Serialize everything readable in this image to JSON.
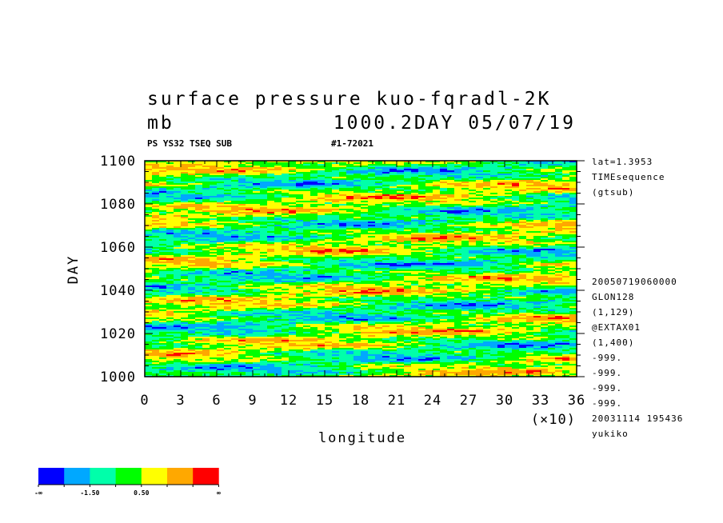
{
  "chart_data": {
    "type": "heatmap",
    "title": "surface pressure kuo-fqradl-2K",
    "units": "mb",
    "title_right": "1000.2DAY 05/07/19",
    "subtitle_left": "PS YS32 TSEQ SUB",
    "subtitle_right": "#1-72021",
    "xlabel": "longitude",
    "ylabel": "DAY",
    "x_multiplier_label": "(×10)",
    "xlim": [
      0,
      36
    ],
    "ylim": [
      1000,
      1100
    ],
    "x_ticks": [
      "0",
      "3",
      "6",
      "9",
      "12",
      "15",
      "18",
      "21",
      "24",
      "27",
      "30",
      "33",
      "36"
    ],
    "y_ticks": [
      "1000",
      "1020",
      "1040",
      "1060",
      "1080",
      "1100"
    ],
    "info_top": [
      "lat=1.3953",
      "TIMEsequence",
      "(gtsub)"
    ],
    "info_bottom": [
      "20050719060000",
      "GLON128",
      "(1,129)",
      "@EXTAX01",
      "(1,400)",
      "-999.",
      "-999.",
      "-999.",
      "-999.",
      "20031114 195436",
      "yukiko"
    ],
    "colorbar": {
      "colors": [
        "#0000ff",
        "#00a8ff",
        "#00ffaa",
        "#00ff00",
        "#ffff00",
        "#ffa800",
        "#ff0000"
      ],
      "labels": [
        "-∞",
        "-1.50",
        "0.50",
        "∞"
      ]
    }
  }
}
